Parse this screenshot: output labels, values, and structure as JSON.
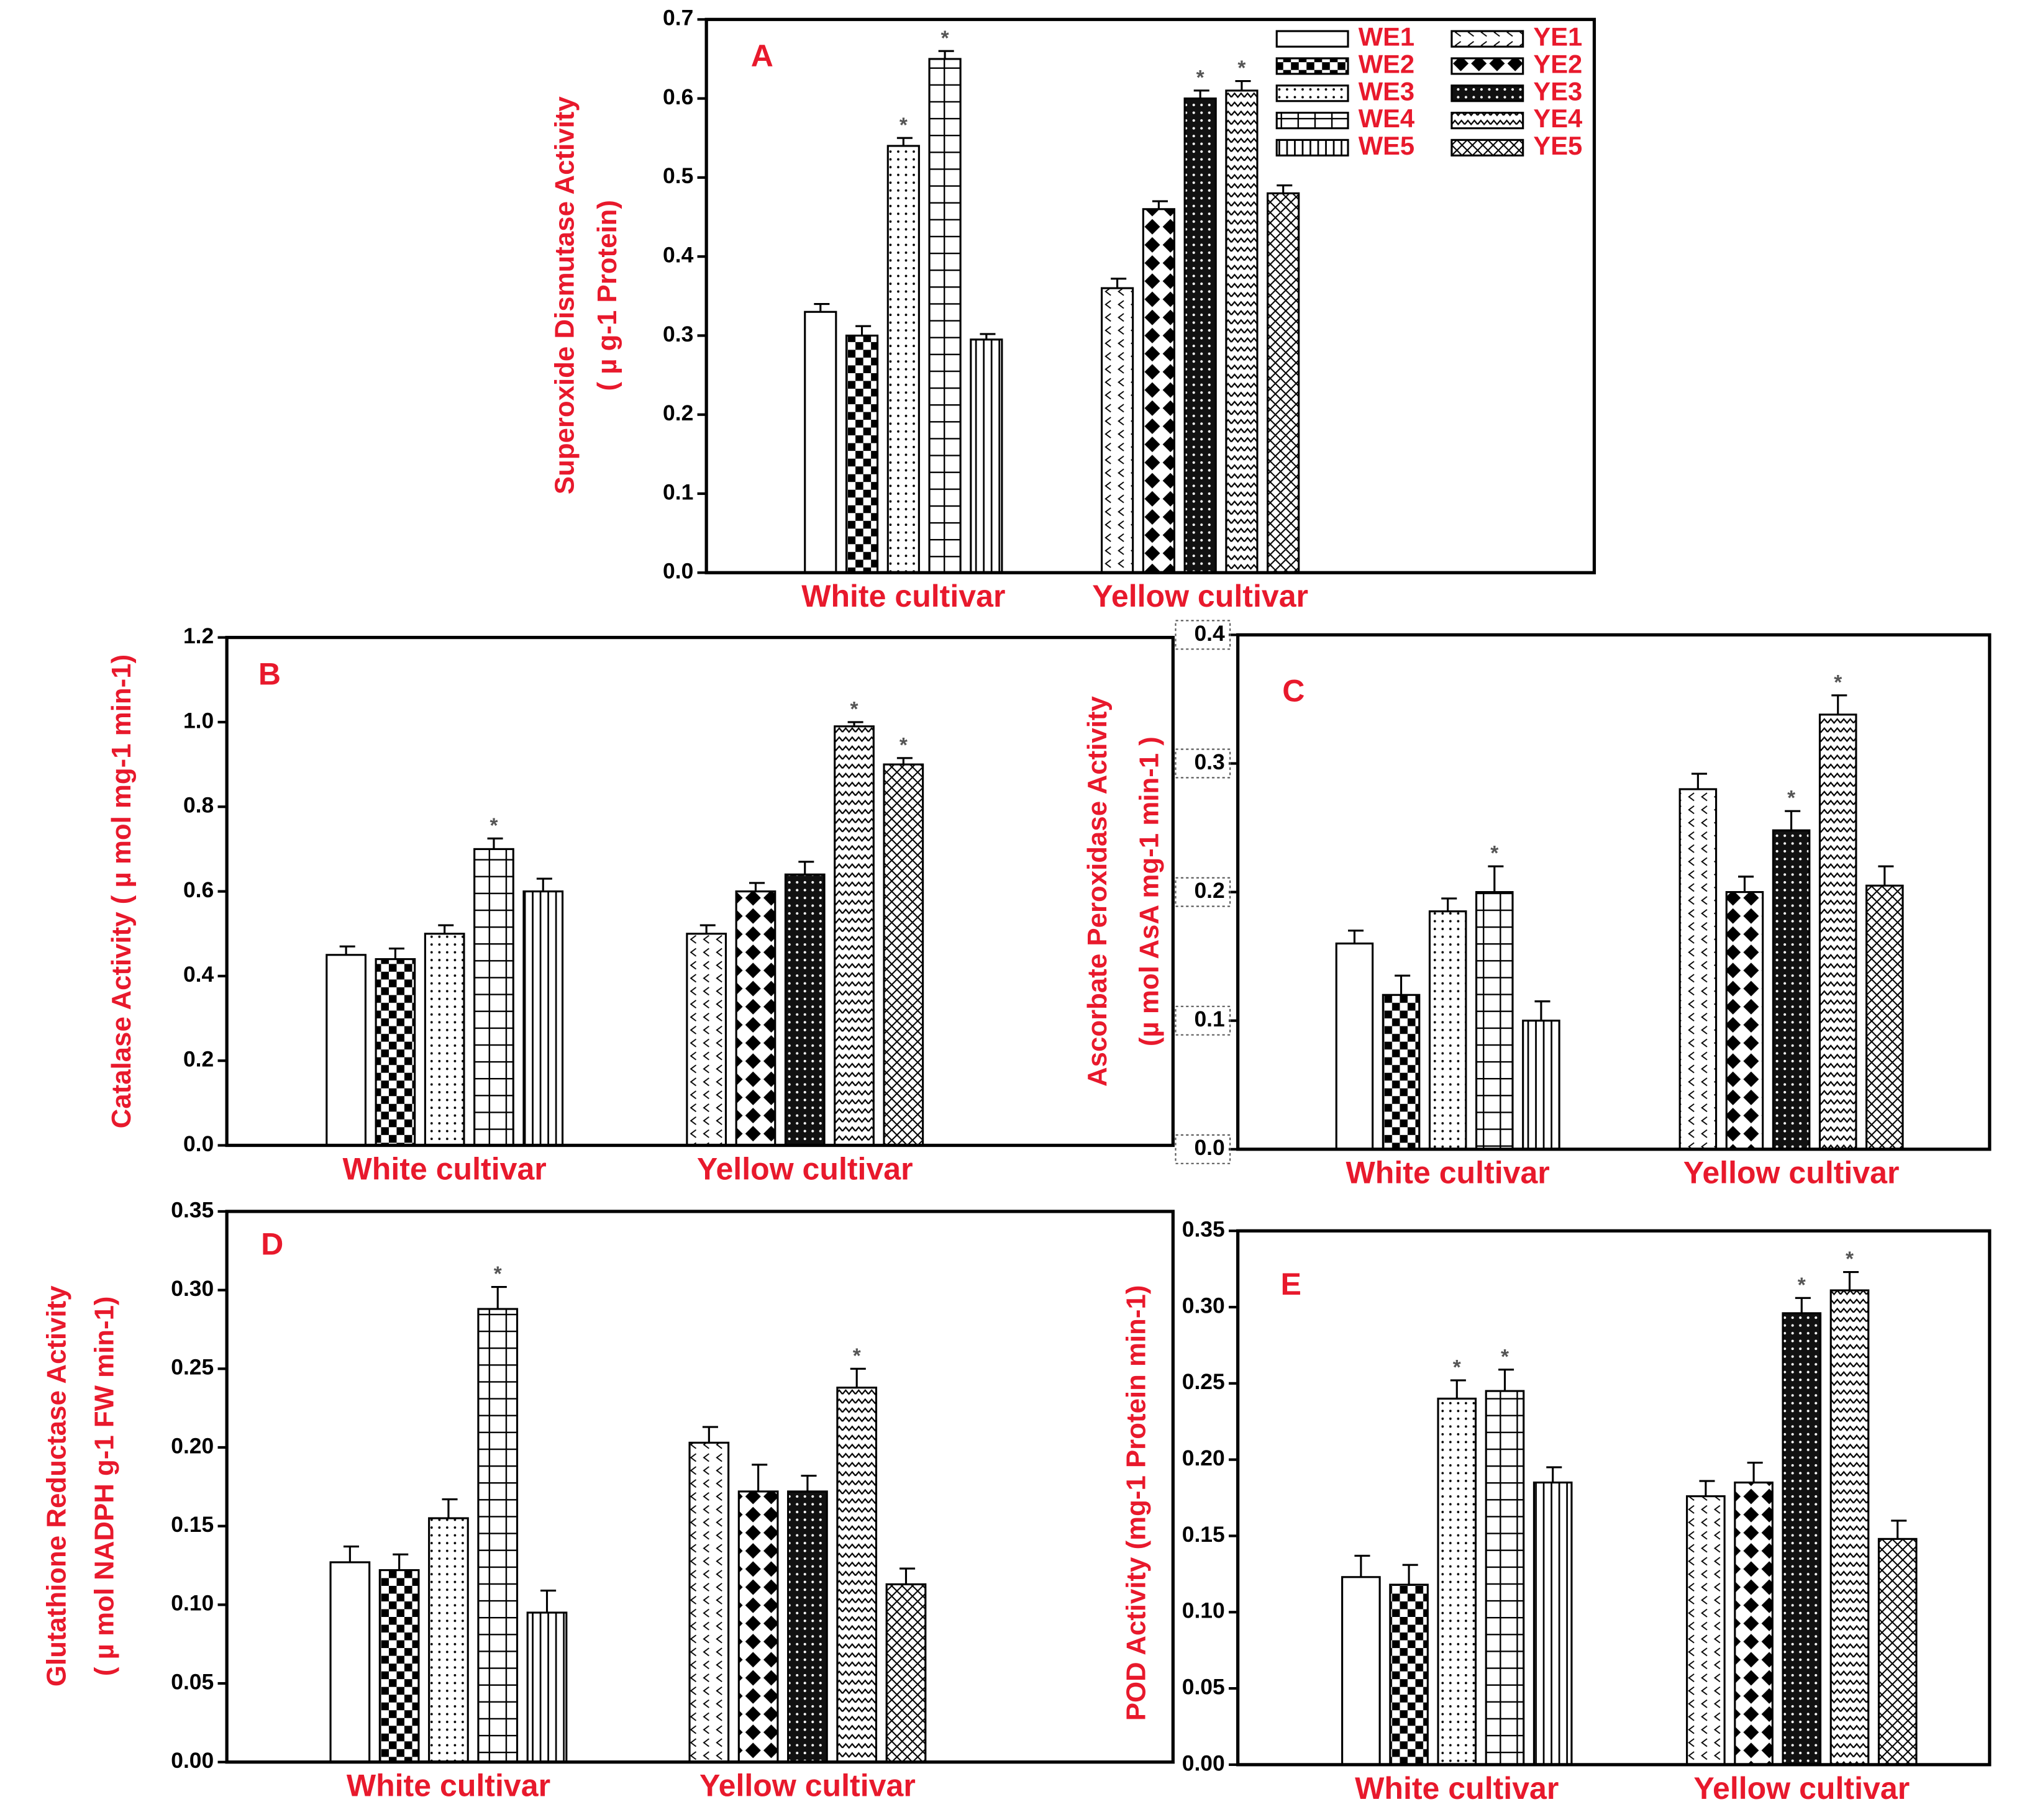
{
  "chart_data": [
    {
      "type": "bar",
      "panel_label": "A",
      "ylabel": [
        "Superoxide Dismutase Activity",
        "( µ g-1 Protein)"
      ],
      "categories": [
        "White cultivar",
        "Yellow cultivar"
      ],
      "ylim": [
        0,
        0.7
      ],
      "yticks": [
        {
          "value": 0,
          "label": "0.0"
        },
        0.1,
        0.2,
        0.3,
        0.4,
        0.5,
        0.6,
        0.7
      ],
      "legend": "upper right",
      "series": [
        {
          "name": "WE1",
          "pattern": "blank",
          "values": [
            0.33,
            null
          ],
          "errors": [
            0.01,
            null
          ],
          "markers": [
            null,
            null
          ]
        },
        {
          "name": "WE2",
          "pattern": "checker",
          "values": [
            0.3,
            null
          ],
          "errors": [
            0.012,
            null
          ],
          "markers": [
            null,
            null
          ]
        },
        {
          "name": "WE3",
          "pattern": "dots",
          "values": [
            0.54,
            null
          ],
          "errors": [
            0.01,
            null
          ],
          "markers": [
            "*",
            null
          ]
        },
        {
          "name": "WE4",
          "pattern": "grid",
          "values": [
            0.65,
            null
          ],
          "errors": [
            0.01,
            null
          ],
          "markers": [
            "*",
            null
          ]
        },
        {
          "name": "WE5",
          "pattern": "vlines",
          "values": [
            0.295,
            null
          ],
          "errors": [
            0.007,
            null
          ],
          "markers": [
            null,
            null
          ]
        },
        {
          "name": "YE1",
          "pattern": "chevron",
          "values": [
            null,
            0.36
          ],
          "errors": [
            null,
            0.012
          ],
          "markers": [
            null,
            null
          ]
        },
        {
          "name": "YE2",
          "pattern": "diamond",
          "values": [
            null,
            0.46
          ],
          "errors": [
            null,
            0.01
          ],
          "markers": [
            null,
            null
          ]
        },
        {
          "name": "YE3",
          "pattern": "darkdots",
          "values": [
            null,
            0.6
          ],
          "errors": [
            null,
            0.01
          ],
          "markers": [
            null,
            "*"
          ]
        },
        {
          "name": "YE4",
          "pattern": "zigzag",
          "values": [
            null,
            0.61
          ],
          "errors": [
            null,
            0.012
          ],
          "markers": [
            null,
            "*"
          ]
        },
        {
          "name": "YE5",
          "pattern": "crosshatch",
          "values": [
            null,
            0.48
          ],
          "errors": [
            null,
            0.01
          ],
          "markers": [
            null,
            null
          ]
        }
      ]
    },
    {
      "type": "bar",
      "panel_label": "B",
      "ylabel": [
        "Catalase Activity ( µ mol mg-1 min-1)"
      ],
      "categories": [
        "White cultivar",
        "Yellow cultivar"
      ],
      "ylim": [
        0,
        1.2
      ],
      "yticks": [
        {
          "value": 0,
          "label": "0.0"
        },
        0.2,
        0.4,
        0.6,
        0.8,
        {
          "value": 1,
          "label": "1.0"
        },
        1.2
      ],
      "series": [
        {
          "pattern": "blank",
          "values": [
            0.45,
            null
          ],
          "errors": [
            0.02,
            null
          ],
          "markers": [
            null,
            null
          ]
        },
        {
          "pattern": "checker",
          "values": [
            0.44,
            null
          ],
          "errors": [
            0.025,
            null
          ],
          "markers": [
            null,
            null
          ]
        },
        {
          "pattern": "dots",
          "values": [
            0.5,
            null
          ],
          "errors": [
            0.02,
            null
          ],
          "markers": [
            null,
            null
          ]
        },
        {
          "pattern": "grid",
          "values": [
            0.7,
            null
          ],
          "errors": [
            0.025,
            null
          ],
          "markers": [
            "*",
            null
          ]
        },
        {
          "pattern": "vlines",
          "values": [
            0.6,
            null
          ],
          "errors": [
            0.03,
            null
          ],
          "markers": [
            null,
            null
          ]
        },
        {
          "pattern": "chevron",
          "values": [
            null,
            0.5
          ],
          "errors": [
            null,
            0.02
          ],
          "markers": [
            null,
            null
          ]
        },
        {
          "pattern": "diamond",
          "values": [
            null,
            0.6
          ],
          "errors": [
            null,
            0.02
          ],
          "markers": [
            null,
            null
          ]
        },
        {
          "pattern": "darkdots",
          "values": [
            null,
            0.64
          ],
          "errors": [
            null,
            0.03
          ],
          "markers": [
            null,
            null
          ]
        },
        {
          "pattern": "zigzag",
          "values": [
            null,
            0.99
          ],
          "errors": [
            null,
            0.01
          ],
          "markers": [
            null,
            "*"
          ]
        },
        {
          "pattern": "crosshatch",
          "values": [
            null,
            0.9
          ],
          "errors": [
            null,
            0.015
          ],
          "markers": [
            null,
            "*"
          ]
        }
      ]
    },
    {
      "type": "bar",
      "panel_label": "C",
      "ylabel": [
        "Ascorbate Peroxidase Activity",
        "(µ mol AsA mg-1 min-1 )"
      ],
      "categories": [
        "White cultivar",
        "Yellow cultivar"
      ],
      "ylim": [
        0,
        0.4
      ],
      "tick_label_box": "dotted",
      "yticks": [
        {
          "value": 0,
          "label": "0.0"
        },
        0.1,
        0.2,
        0.3,
        0.4
      ],
      "series": [
        {
          "pattern": "blank",
          "values": [
            0.16,
            null
          ],
          "errors": [
            0.01,
            null
          ],
          "markers": [
            null,
            null
          ]
        },
        {
          "pattern": "checker",
          "values": [
            0.12,
            null
          ],
          "errors": [
            0.015,
            null
          ],
          "markers": [
            null,
            null
          ]
        },
        {
          "pattern": "dots",
          "values": [
            0.185,
            null
          ],
          "errors": [
            0.01,
            null
          ],
          "markers": [
            null,
            null
          ]
        },
        {
          "pattern": "grid",
          "values": [
            0.2,
            null
          ],
          "errors": [
            0.02,
            null
          ],
          "markers": [
            "*",
            null
          ]
        },
        {
          "pattern": "vlines",
          "values": [
            0.1,
            null
          ],
          "errors": [
            0.015,
            null
          ],
          "markers": [
            null,
            null
          ]
        },
        {
          "pattern": "chevron",
          "values": [
            null,
            0.28
          ],
          "errors": [
            null,
            0.012
          ],
          "markers": [
            null,
            null
          ]
        },
        {
          "pattern": "diamond",
          "values": [
            null,
            0.2
          ],
          "errors": [
            null,
            0.012
          ],
          "markers": [
            null,
            null
          ]
        },
        {
          "pattern": "darkdots",
          "values": [
            null,
            0.248
          ],
          "errors": [
            null,
            0.015
          ],
          "markers": [
            null,
            "*"
          ]
        },
        {
          "pattern": "zigzag",
          "values": [
            null,
            0.338
          ],
          "errors": [
            null,
            0.015
          ],
          "markers": [
            null,
            "*"
          ]
        },
        {
          "pattern": "crosshatch",
          "values": [
            null,
            0.205
          ],
          "errors": [
            null,
            0.015
          ],
          "markers": [
            null,
            null
          ]
        }
      ]
    },
    {
      "type": "bar",
      "panel_label": "D",
      "ylabel": [
        "Glutathione Reductase Activity",
        "( µ mol NADPH g-1 FW min-1)"
      ],
      "categories": [
        "White cultivar",
        "Yellow cultivar"
      ],
      "ylim": [
        0,
        0.35
      ],
      "yticks": [
        {
          "value": 0,
          "label": "0.00"
        },
        0.05,
        {
          "value": 0.1,
          "label": "0.10"
        },
        0.15,
        {
          "value": 0.2,
          "label": "0.20"
        },
        0.25,
        {
          "value": 0.3,
          "label": "0.30"
        },
        0.35
      ],
      "series": [
        {
          "pattern": "blank",
          "values": [
            0.127,
            null
          ],
          "errors": [
            0.01,
            null
          ],
          "markers": [
            null,
            null
          ]
        },
        {
          "pattern": "checker",
          "values": [
            0.122,
            null
          ],
          "errors": [
            0.01,
            null
          ],
          "markers": [
            null,
            null
          ]
        },
        {
          "pattern": "dots",
          "values": [
            0.155,
            null
          ],
          "errors": [
            0.012,
            null
          ],
          "markers": [
            null,
            null
          ]
        },
        {
          "pattern": "grid",
          "values": [
            0.288,
            null
          ],
          "errors": [
            0.014,
            null
          ],
          "markers": [
            "*",
            null
          ]
        },
        {
          "pattern": "vlines",
          "values": [
            0.095,
            null
          ],
          "errors": [
            0.014,
            null
          ],
          "markers": [
            null,
            null
          ]
        },
        {
          "pattern": "chevron",
          "values": [
            null,
            0.203
          ],
          "errors": [
            null,
            0.01
          ],
          "markers": [
            null,
            null
          ]
        },
        {
          "pattern": "diamond",
          "values": [
            null,
            0.172
          ],
          "errors": [
            null,
            0.017
          ],
          "markers": [
            null,
            null
          ]
        },
        {
          "pattern": "darkdots",
          "values": [
            null,
            0.172
          ],
          "errors": [
            null,
            0.01
          ],
          "markers": [
            null,
            null
          ]
        },
        {
          "pattern": "zigzag",
          "values": [
            null,
            0.238
          ],
          "errors": [
            null,
            0.012
          ],
          "markers": [
            null,
            "*"
          ]
        },
        {
          "pattern": "crosshatch",
          "values": [
            null,
            0.113
          ],
          "errors": [
            null,
            0.01
          ],
          "markers": [
            null,
            null
          ]
        }
      ]
    },
    {
      "type": "bar",
      "panel_label": "E",
      "ylabel": [
        "POD Activity (mg-1 Protein min-1)"
      ],
      "categories": [
        "White cultivar",
        "Yellow cultivar"
      ],
      "ylim": [
        0,
        0.35
      ],
      "yticks": [
        {
          "value": 0,
          "label": "0.00"
        },
        0.05,
        {
          "value": 0.1,
          "label": "0.10"
        },
        0.15,
        {
          "value": 0.2,
          "label": "0.20"
        },
        0.25,
        {
          "value": 0.3,
          "label": "0.30"
        },
        0.35
      ],
      "series": [
        {
          "pattern": "blank",
          "values": [
            0.123,
            null
          ],
          "errors": [
            0.014,
            null
          ],
          "markers": [
            null,
            null
          ]
        },
        {
          "pattern": "checker",
          "values": [
            0.118,
            null
          ],
          "errors": [
            0.013,
            null
          ],
          "markers": [
            null,
            null
          ]
        },
        {
          "pattern": "dots",
          "values": [
            0.24,
            null
          ],
          "errors": [
            0.012,
            null
          ],
          "markers": [
            "*",
            null
          ]
        },
        {
          "pattern": "grid",
          "values": [
            0.245,
            null
          ],
          "errors": [
            0.014,
            null
          ],
          "markers": [
            "*",
            null
          ]
        },
        {
          "pattern": "vlines",
          "values": [
            0.185,
            null
          ],
          "errors": [
            0.01,
            null
          ],
          "markers": [
            null,
            null
          ]
        },
        {
          "pattern": "chevron",
          "values": [
            null,
            0.176
          ],
          "errors": [
            null,
            0.01
          ],
          "markers": [
            null,
            null
          ]
        },
        {
          "pattern": "diamond",
          "values": [
            null,
            0.185
          ],
          "errors": [
            null,
            0.013
          ],
          "markers": [
            null,
            null
          ]
        },
        {
          "pattern": "darkdots",
          "values": [
            null,
            0.296
          ],
          "errors": [
            null,
            0.01
          ],
          "markers": [
            null,
            "*"
          ]
        },
        {
          "pattern": "zigzag",
          "values": [
            null,
            0.311
          ],
          "errors": [
            null,
            0.012
          ],
          "markers": [
            null,
            "*"
          ]
        },
        {
          "pattern": "crosshatch",
          "values": [
            null,
            0.148
          ],
          "errors": [
            null,
            0.012
          ],
          "markers": [
            null,
            null
          ]
        }
      ]
    }
  ]
}
